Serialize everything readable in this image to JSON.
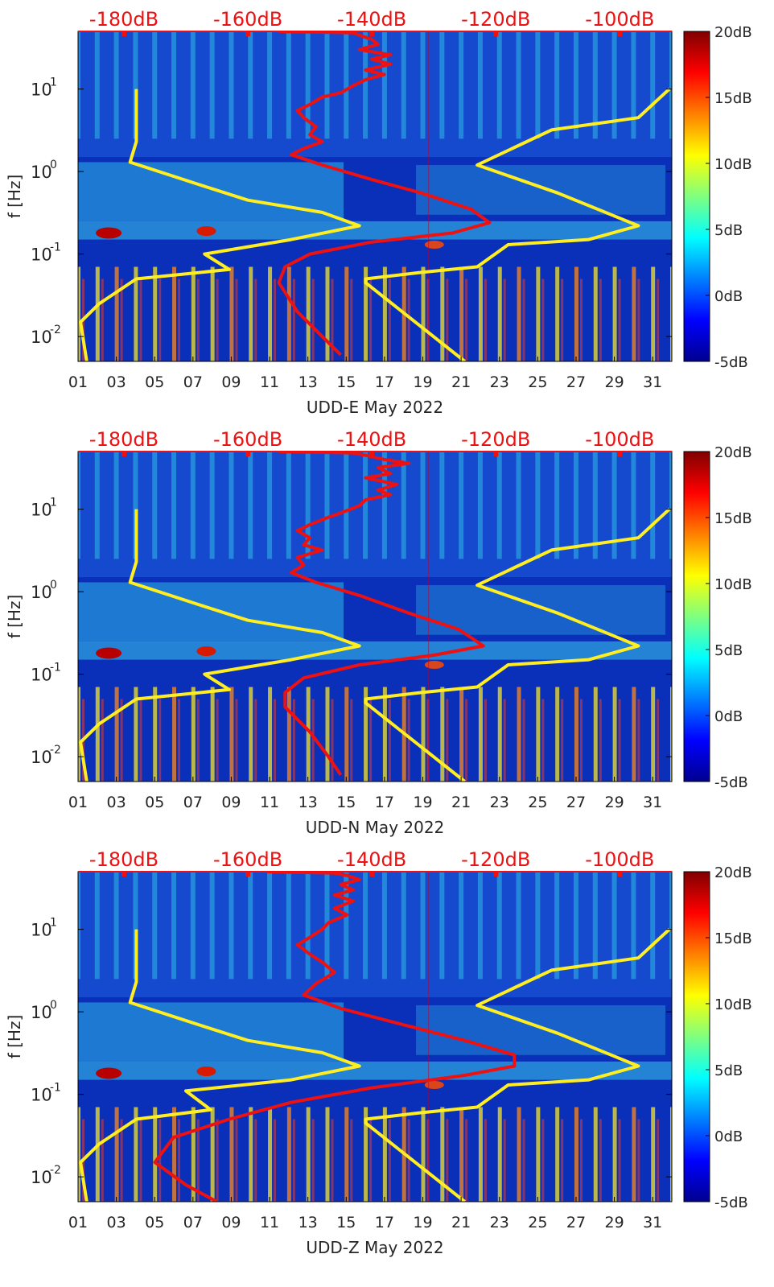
{
  "chart_data": [
    {
      "type": "heatmap",
      "title": "",
      "xlabel": "UDD-E May 2022",
      "ylabel": "f [Hz]",
      "x_ticks": [
        "01",
        "03",
        "05",
        "07",
        "09",
        "11",
        "13",
        "15",
        "17",
        "19",
        "21",
        "23",
        "25",
        "27",
        "29",
        "31"
      ],
      "xlim": [
        1,
        32
      ],
      "ylim": [
        0.005,
        50
      ],
      "y_scale": "log",
      "y_ticks": [
        {
          "value": 10,
          "base": "10",
          "exp": "1"
        },
        {
          "value": 1,
          "base": "10",
          "exp": "0"
        },
        {
          "value": 0.1,
          "base": "10",
          "exp": "-1"
        },
        {
          "value": 0.01,
          "base": "10",
          "exp": "-2"
        }
      ],
      "top_axis_labels": [
        "-180dB",
        "-160dB",
        "-140dB",
        "-120dB",
        "-100dB"
      ],
      "top_axis_values": [
        -180,
        -160,
        -140,
        -120,
        -100
      ],
      "top_axis_range": [
        -187.4,
        -91.6
      ],
      "colorbar": {
        "ticks": [
          "20dB",
          "15dB",
          "10dB",
          "5dB",
          "0dB",
          "-5dB"
        ],
        "range": [
          -5,
          20
        ],
        "colormap": "jet"
      },
      "series": [
        {
          "color": "#ffee22",
          "points": [
            [
              -178,
              10
            ],
            [
              -178,
              2.3
            ],
            [
              -179,
              1.3
            ],
            [
              -168,
              0.7
            ],
            [
              -160,
              0.45
            ],
            [
              -148,
              0.32
            ],
            [
              -142,
              0.22
            ],
            [
              -153,
              0.15
            ],
            [
              -167,
              0.1
            ],
            [
              -163,
              0.065
            ],
            [
              -178,
              0.05
            ],
            [
              -184,
              0.025
            ],
            [
              -187,
              0.015
            ],
            [
              -186,
              0.005
            ]
          ]
        },
        {
          "color": "#ffee22",
          "points": [
            [
              -92,
              10
            ],
            [
              -97,
              4.5
            ],
            [
              -111,
              3.2
            ],
            [
              -123,
              1.2
            ],
            [
              -110,
              0.55
            ],
            [
              -97,
              0.22
            ],
            [
              -105,
              0.15
            ],
            [
              -118,
              0.13
            ],
            [
              -123,
              0.07
            ],
            [
              -132,
              0.06
            ],
            [
              -141,
              0.05
            ],
            [
              -141,
              0.045
            ],
            [
              -125,
              0.005
            ]
          ]
        }
      ],
      "red_curve": {
        "color": "#ee1111",
        "points": [
          [
            -155,
            50
          ],
          [
            -143,
            48
          ],
          [
            -142,
            45
          ],
          [
            -140,
            40
          ],
          [
            -139,
            35
          ],
          [
            -142,
            30
          ],
          [
            -137,
            26
          ],
          [
            -140,
            23
          ],
          [
            -137,
            20
          ],
          [
            -141,
            17
          ],
          [
            -138,
            15
          ],
          [
            -141,
            13
          ],
          [
            -143,
            11
          ],
          [
            -145,
            9
          ],
          [
            -148,
            8
          ],
          [
            -150,
            6.5
          ],
          [
            -152,
            5.5
          ],
          [
            -151,
            4.5
          ],
          [
            -149,
            3.5
          ],
          [
            -150,
            2.8
          ],
          [
            -148,
            2.3
          ],
          [
            -151,
            1.9
          ],
          [
            -153,
            1.6
          ],
          [
            -148,
            1.2
          ],
          [
            -140,
            0.8
          ],
          [
            -132,
            0.55
          ],
          [
            -124,
            0.35
          ],
          [
            -121,
            0.24
          ],
          [
            -127,
            0.18
          ],
          [
            -140,
            0.14
          ],
          [
            -150,
            0.1
          ],
          [
            -154,
            0.07
          ],
          [
            -155,
            0.045
          ],
          [
            -152,
            0.02
          ],
          [
            -148,
            0.01
          ],
          [
            -145,
            0.006
          ]
        ]
      }
    },
    {
      "type": "heatmap",
      "title": "",
      "xlabel": "UDD-N May 2022",
      "ylabel": "f [Hz]",
      "x_ticks": [
        "01",
        "03",
        "05",
        "07",
        "09",
        "11",
        "13",
        "15",
        "17",
        "19",
        "21",
        "23",
        "25",
        "27",
        "29",
        "31"
      ],
      "xlim": [
        1,
        32
      ],
      "ylim": [
        0.005,
        50
      ],
      "y_scale": "log",
      "y_ticks": [
        {
          "value": 10,
          "base": "10",
          "exp": "1"
        },
        {
          "value": 1,
          "base": "10",
          "exp": "0"
        },
        {
          "value": 0.1,
          "base": "10",
          "exp": "-1"
        },
        {
          "value": 0.01,
          "base": "10",
          "exp": "-2"
        }
      ],
      "top_axis_labels": [
        "-180dB",
        "-160dB",
        "-140dB",
        "-120dB",
        "-100dB"
      ],
      "top_axis_values": [
        -180,
        -160,
        -140,
        -120,
        -100
      ],
      "top_axis_range": [
        -187.4,
        -91.6
      ],
      "colorbar": {
        "ticks": [
          "20dB",
          "15dB",
          "10dB",
          "5dB",
          "0dB",
          "-5dB"
        ],
        "range": [
          -5,
          20
        ],
        "colormap": "jet"
      },
      "series": [
        {
          "color": "#ffee22",
          "points": [
            [
              -178,
              10
            ],
            [
              -178,
              2.3
            ],
            [
              -179,
              1.3
            ],
            [
              -168,
              0.7
            ],
            [
              -160,
              0.45
            ],
            [
              -148,
              0.32
            ],
            [
              -142,
              0.22
            ],
            [
              -153,
              0.15
            ],
            [
              -167,
              0.1
            ],
            [
              -163,
              0.065
            ],
            [
              -178,
              0.05
            ],
            [
              -184,
              0.025
            ],
            [
              -187,
              0.015
            ],
            [
              -186,
              0.005
            ]
          ]
        },
        {
          "color": "#ffee22",
          "points": [
            [
              -92,
              10
            ],
            [
              -97,
              4.5
            ],
            [
              -111,
              3.2
            ],
            [
              -123,
              1.2
            ],
            [
              -110,
              0.55
            ],
            [
              -97,
              0.22
            ],
            [
              -105,
              0.15
            ],
            [
              -118,
              0.13
            ],
            [
              -123,
              0.07
            ],
            [
              -132,
              0.06
            ],
            [
              -141,
              0.05
            ],
            [
              -141,
              0.045
            ],
            [
              -125,
              0.005
            ]
          ]
        }
      ],
      "red_curve": {
        "color": "#ee1111",
        "points": [
          [
            -155,
            50
          ],
          [
            -143,
            48
          ],
          [
            -141,
            45
          ],
          [
            -138,
            40
          ],
          [
            -134,
            36
          ],
          [
            -139,
            32
          ],
          [
            -137,
            27
          ],
          [
            -141,
            24
          ],
          [
            -136,
            20
          ],
          [
            -139,
            17
          ],
          [
            -137,
            15
          ],
          [
            -141,
            13
          ],
          [
            -142,
            11
          ],
          [
            -145,
            9
          ],
          [
            -147,
            8
          ],
          [
            -150,
            6.5
          ],
          [
            -152,
            5.5
          ],
          [
            -150,
            4.5
          ],
          [
            -151,
            3.7
          ],
          [
            -148,
            3.2
          ],
          [
            -152,
            2.6
          ],
          [
            -151,
            2.1
          ],
          [
            -153,
            1.7
          ],
          [
            -149,
            1.3
          ],
          [
            -142,
            0.9
          ],
          [
            -134,
            0.55
          ],
          [
            -126,
            0.35
          ],
          [
            -122,
            0.22
          ],
          [
            -130,
            0.17
          ],
          [
            -142,
            0.13
          ],
          [
            -151,
            0.09
          ],
          [
            -154,
            0.06
          ],
          [
            -154,
            0.04
          ],
          [
            -150,
            0.02
          ],
          [
            -147,
            0.01
          ],
          [
            -145,
            0.006
          ]
        ]
      }
    },
    {
      "type": "heatmap",
      "title": "",
      "xlabel": "UDD-Z May 2022",
      "ylabel": "f [Hz]",
      "x_ticks": [
        "01",
        "03",
        "05",
        "07",
        "09",
        "11",
        "13",
        "15",
        "17",
        "19",
        "21",
        "23",
        "25",
        "27",
        "29",
        "31"
      ],
      "xlim": [
        1,
        32
      ],
      "ylim": [
        0.005,
        50
      ],
      "y_scale": "log",
      "y_ticks": [
        {
          "value": 10,
          "base": "10",
          "exp": "1"
        },
        {
          "value": 1,
          "base": "10",
          "exp": "0"
        },
        {
          "value": 0.1,
          "base": "10",
          "exp": "-1"
        },
        {
          "value": 0.01,
          "base": "10",
          "exp": "-2"
        }
      ],
      "top_axis_labels": [
        "-180dB",
        "-160dB",
        "-140dB",
        "-120dB",
        "-100dB"
      ],
      "top_axis_values": [
        -180,
        -160,
        -140,
        -120,
        -100
      ],
      "top_axis_range": [
        -187.4,
        -91.6
      ],
      "colorbar": {
        "ticks": [
          "20dB",
          "15dB",
          "10dB",
          "5dB",
          "0dB",
          "-5dB"
        ],
        "range": [
          -5,
          20
        ],
        "colormap": "jet"
      },
      "series": [
        {
          "color": "#ffee22",
          "points": [
            [
              -178,
              10
            ],
            [
              -178,
              2.3
            ],
            [
              -179,
              1.3
            ],
            [
              -168,
              0.7
            ],
            [
              -160,
              0.45
            ],
            [
              -148,
              0.32
            ],
            [
              -142,
              0.22
            ],
            [
              -153,
              0.15
            ],
            [
              -170,
              0.11
            ],
            [
              -166,
              0.065
            ],
            [
              -178,
              0.05
            ],
            [
              -184,
              0.025
            ],
            [
              -187,
              0.015
            ],
            [
              -186,
              0.005
            ]
          ]
        },
        {
          "color": "#ffee22",
          "points": [
            [
              -92,
              10
            ],
            [
              -97,
              4.5
            ],
            [
              -111,
              3.2
            ],
            [
              -123,
              1.2
            ],
            [
              -110,
              0.55
            ],
            [
              -97,
              0.22
            ],
            [
              -105,
              0.15
            ],
            [
              -118,
              0.13
            ],
            [
              -123,
              0.07
            ],
            [
              -132,
              0.06
            ],
            [
              -141,
              0.05
            ],
            [
              -141,
              0.045
            ],
            [
              -125,
              0.005
            ]
          ]
        }
      ],
      "red_curve": {
        "color": "#ee1111",
        "points": [
          [
            -157,
            50
          ],
          [
            -146,
            48
          ],
          [
            -144,
            45
          ],
          [
            -142,
            40
          ],
          [
            -145,
            35
          ],
          [
            -143,
            30
          ],
          [
            -146,
            26
          ],
          [
            -143,
            22
          ],
          [
            -146,
            18
          ],
          [
            -144,
            15
          ],
          [
            -147,
            12
          ],
          [
            -148,
            10
          ],
          [
            -150,
            8
          ],
          [
            -152,
            6.5
          ],
          [
            -150,
            5
          ],
          [
            -148,
            4
          ],
          [
            -146,
            3
          ],
          [
            -149,
            2.2
          ],
          [
            -151,
            1.6
          ],
          [
            -145,
            1.1
          ],
          [
            -135,
            0.7
          ],
          [
            -125,
            0.45
          ],
          [
            -117,
            0.3
          ],
          [
            -117,
            0.22
          ],
          [
            -125,
            0.17
          ],
          [
            -140,
            0.12
          ],
          [
            -153,
            0.08
          ],
          [
            -163,
            0.05
          ],
          [
            -172,
            0.03
          ],
          [
            -175,
            0.015
          ],
          [
            -170,
            0.008
          ],
          [
            -165,
            0.005
          ]
        ]
      }
    }
  ]
}
